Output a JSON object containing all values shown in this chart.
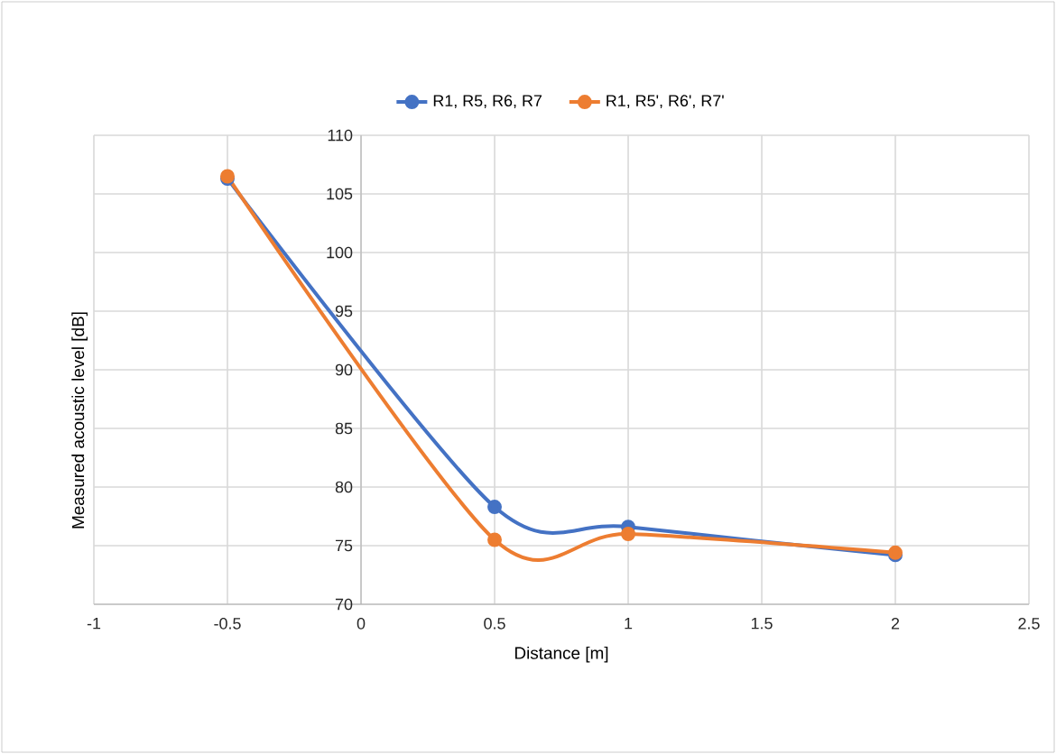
{
  "chart_data": {
    "type": "line",
    "xlabel": "Distance [m]",
    "ylabel": "Measured acoustic level  [dB]",
    "x": [
      -0.5,
      0.5,
      1,
      2
    ],
    "series": [
      {
        "name": "R1, R5, R6, R7",
        "color": "#4472c4",
        "values": [
          106.3,
          78.3,
          76.6,
          74.2
        ]
      },
      {
        "name": "R1, R5', R6', R7'",
        "color": "#ed7d31",
        "values": [
          106.5,
          75.5,
          76.0,
          74.4
        ]
      }
    ],
    "xlim": [
      -1,
      2.5
    ],
    "xticks": [
      -1,
      -0.5,
      0,
      0.5,
      1,
      1.5,
      2,
      2.5
    ],
    "ylim": [
      70,
      110
    ],
    "yticks": [
      70,
      75,
      80,
      85,
      90,
      95,
      100,
      105,
      110
    ],
    "grid": true,
    "legend": "top",
    "marker": "circle",
    "line_style": "solid"
  }
}
